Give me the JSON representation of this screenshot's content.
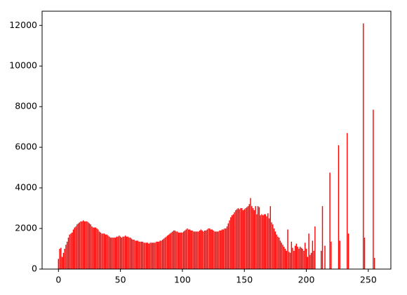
{
  "chart_data": {
    "type": "bar",
    "color": "#ff0000",
    "x": [
      0,
      1,
      2,
      3,
      4,
      5,
      6,
      7,
      8,
      9,
      10,
      11,
      12,
      13,
      14,
      15,
      16,
      17,
      18,
      19,
      20,
      21,
      22,
      23,
      24,
      25,
      26,
      27,
      28,
      29,
      30,
      31,
      32,
      33,
      34,
      35,
      36,
      37,
      38,
      39,
      40,
      41,
      42,
      43,
      44,
      45,
      46,
      47,
      48,
      49,
      50,
      51,
      52,
      53,
      54,
      55,
      56,
      57,
      58,
      59,
      60,
      61,
      62,
      63,
      64,
      65,
      66,
      67,
      68,
      69,
      70,
      71,
      72,
      73,
      74,
      75,
      76,
      77,
      78,
      79,
      80,
      81,
      82,
      83,
      84,
      85,
      86,
      87,
      88,
      89,
      90,
      91,
      92,
      93,
      94,
      95,
      96,
      97,
      98,
      99,
      100,
      101,
      102,
      103,
      104,
      105,
      106,
      107,
      108,
      109,
      110,
      111,
      112,
      113,
      114,
      115,
      116,
      117,
      118,
      119,
      120,
      121,
      122,
      123,
      124,
      125,
      126,
      127,
      128,
      129,
      130,
      131,
      132,
      133,
      134,
      135,
      136,
      137,
      138,
      139,
      140,
      141,
      142,
      143,
      144,
      145,
      146,
      147,
      148,
      149,
      150,
      151,
      152,
      153,
      154,
      155,
      156,
      157,
      158,
      159,
      160,
      161,
      162,
      163,
      164,
      165,
      166,
      167,
      168,
      169,
      170,
      171,
      172,
      173,
      174,
      175,
      176,
      177,
      178,
      179,
      180,
      181,
      182,
      183,
      184,
      185,
      186,
      187,
      188,
      189,
      190,
      191,
      192,
      193,
      194,
      195,
      196,
      197,
      198,
      199,
      200,
      201,
      202,
      203,
      204,
      205,
      206,
      207,
      208,
      209,
      210,
      211,
      212,
      213,
      214,
      215,
      216,
      217,
      218,
      219,
      220,
      221,
      222,
      223,
      224,
      225,
      226,
      227,
      228,
      229,
      230,
      231,
      232,
      233,
      234,
      235,
      236,
      237,
      238,
      239,
      240,
      241,
      242,
      243,
      244,
      245,
      246,
      247,
      248,
      249,
      250,
      251,
      252,
      253,
      254,
      255
    ],
    "values": [
      500,
      1000,
      1050,
      600,
      800,
      1000,
      1200,
      1350,
      1550,
      1700,
      1750,
      1800,
      1950,
      2050,
      2100,
      2200,
      2250,
      2300,
      2350,
      2350,
      2400,
      2350,
      2350,
      2350,
      2300,
      2250,
      2200,
      2100,
      2050,
      2050,
      2050,
      2000,
      1950,
      1850,
      1800,
      1750,
      1750,
      1750,
      1700,
      1700,
      1650,
      1600,
      1550,
      1550,
      1550,
      1550,
      1550,
      1600,
      1600,
      1650,
      1600,
      1550,
      1600,
      1600,
      1650,
      1600,
      1600,
      1550,
      1550,
      1500,
      1450,
      1450,
      1400,
      1400,
      1400,
      1350,
      1350,
      1350,
      1350,
      1300,
      1300,
      1300,
      1300,
      1250,
      1300,
      1300,
      1300,
      1300,
      1300,
      1350,
      1350,
      1350,
      1400,
      1400,
      1450,
      1500,
      1550,
      1600,
      1650,
      1700,
      1750,
      1800,
      1850,
      1900,
      1900,
      1850,
      1850,
      1800,
      1800,
      1800,
      1800,
      1850,
      1900,
      1950,
      2000,
      1950,
      1950,
      1900,
      1900,
      1850,
      1850,
      1850,
      1850,
      1850,
      1900,
      1950,
      1900,
      1850,
      1900,
      1900,
      1950,
      2000,
      2000,
      1950,
      1950,
      1900,
      1850,
      1850,
      1850,
      1850,
      1900,
      1900,
      1950,
      1950,
      2000,
      2000,
      2100,
      2250,
      2400,
      2550,
      2650,
      2700,
      2800,
      2900,
      2950,
      3000,
      2950,
      3000,
      3000,
      2900,
      2950,
      3000,
      3050,
      3100,
      3200,
      3500,
      3100,
      3000,
      2900,
      3100,
      2700,
      3100,
      3050,
      2650,
      2700,
      2650,
      2700,
      2700,
      2600,
      2750,
      2500,
      3100,
      2300,
      2200,
      2000,
      1850,
      1700,
      1600,
      1550,
      1400,
      1300,
      1200,
      1100,
      1000,
      900,
      1950,
      850,
      800,
      1350,
      1050,
      900,
      1150,
      1250,
      1100,
      1000,
      1100,
      1050,
      1000,
      900,
      1300,
      1000,
      600,
      1750,
      700,
      800,
      1400,
      900,
      2100,
      0,
      0,
      0,
      0,
      900,
      3100,
      0,
      1150,
      0,
      0,
      0,
      4750,
      1350,
      0,
      0,
      0,
      0,
      0,
      6100,
      1400,
      0,
      0,
      0,
      0,
      0,
      6700,
      1750,
      0,
      0,
      0,
      0,
      0,
      0,
      0,
      0,
      0,
      0,
      0,
      12100,
      1550,
      0,
      0,
      0,
      0,
      0,
      0,
      7850,
      550
    ],
    "xlim": [
      -13.2,
      268.2
    ],
    "xticks": [
      0,
      50,
      100,
      150,
      200,
      250
    ],
    "ylim": [
      0,
      12700
    ],
    "yticks": [
      0,
      2000,
      4000,
      6000,
      8000,
      10000,
      12000
    ]
  }
}
